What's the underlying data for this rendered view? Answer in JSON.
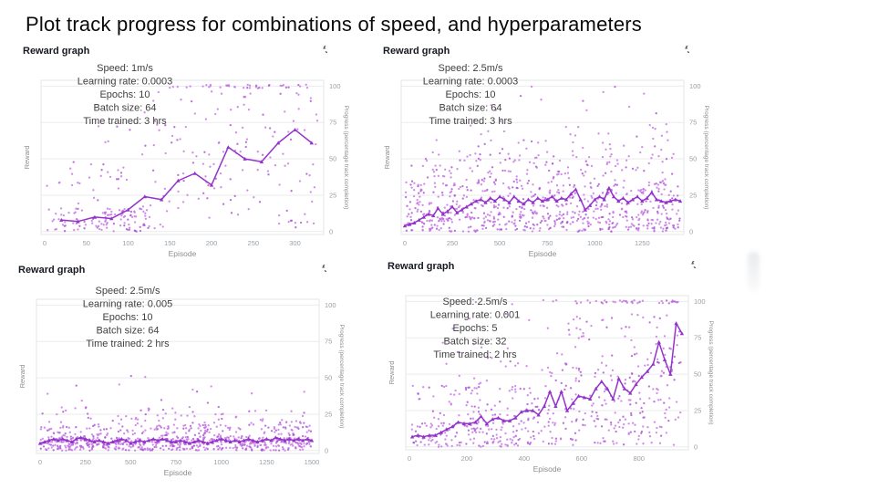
{
  "page": {
    "title": "Plot track progress for combinations of speed, and hyperparameters"
  },
  "panel": {
    "header": "Reward graph"
  },
  "colors": {
    "line": "#9433cc",
    "scatter": "#c471e3",
    "scatter_alt": "#a94fd2",
    "grid": "#ebebeb",
    "border": "#e3e6ea",
    "axis_text": "#9aa0a6",
    "axis_label": "#8d8d8d",
    "annotation_text": "#3f3f3f",
    "header_text": "#16191f",
    "icon": "#545b64"
  },
  "chart_data": {
    "type": "scatter+line",
    "shared_axes": {
      "xlabel": "Episode",
      "ylabel_left": "Reward",
      "ylabel_right": "Progress (percentage track completion)",
      "y_ticks": [
        0,
        25,
        50,
        75,
        100
      ],
      "y_range": [
        0,
        100
      ],
      "grid": "horizontal only",
      "legend": "none"
    },
    "charts": [
      {
        "title": "Reward graph",
        "annotation": [
          "Speed: 1m/s",
          "Learning rate: 0.0003",
          "Epochs: 10",
          "Batch size: 64",
          "Time trained: 3 hrs"
        ],
        "x_ticks": [
          0,
          50,
          100,
          150,
          200,
          250,
          300
        ],
        "x_max": 330,
        "seed": 7,
        "line": {
          "x": [
            20,
            40,
            60,
            80,
            100,
            120,
            140,
            160,
            180,
            200,
            220,
            240,
            260,
            280,
            300,
            320
          ],
          "y": [
            8,
            7,
            10,
            9,
            15,
            24,
            22,
            35,
            40,
            32,
            58,
            50,
            48,
            61,
            70,
            61
          ]
        },
        "scatter_clusters": [
          {
            "n": 110,
            "x": [
              2,
              130
            ],
            "y": [
              0,
              16
            ]
          },
          {
            "n": 30,
            "x": [
              2,
              130
            ],
            "y": [
              16,
              48
            ]
          },
          {
            "n": 85,
            "x": [
              130,
              328
            ],
            "y": [
              2,
              58
            ]
          },
          {
            "n": 55,
            "x": [
              130,
              328
            ],
            "y": [
              58,
              97
            ]
          },
          {
            "n": 38,
            "x": [
              140,
              328
            ],
            "y": [
              98.5,
              101
            ]
          },
          {
            "n": 10,
            "x": [
              60,
              140
            ],
            "y": [
              48,
              90
            ]
          }
        ]
      },
      {
        "title": "Reward graph",
        "annotation": [
          "Speed: 2.5m/s",
          "Learning rate: 0.0003",
          "Epochs: 10",
          "Batch size: 64",
          "Time trained: 3 hrs"
        ],
        "x_ticks": [
          0,
          250,
          500,
          750,
          1000,
          1250
        ],
        "x_max": 1450,
        "seed": 11,
        "line": {
          "x": [
            0,
            25,
            50,
            75,
            100,
            125,
            150,
            175,
            200,
            225,
            250,
            275,
            300,
            325,
            350,
            375,
            400,
            425,
            450,
            475,
            500,
            525,
            550,
            575,
            600,
            625,
            650,
            675,
            700,
            725,
            750,
            775,
            800,
            825,
            850,
            875,
            900,
            925,
            950,
            975,
            1000,
            1025,
            1050,
            1075,
            1100,
            1125,
            1150,
            1175,
            1200,
            1225,
            1250,
            1275,
            1300,
            1325,
            1350,
            1375,
            1400,
            1425,
            1450
          ],
          "y": [
            4,
            5,
            6,
            8,
            10,
            12,
            11,
            16,
            12,
            14,
            17,
            13,
            15,
            17,
            19,
            21,
            22,
            20,
            23,
            21,
            24,
            22,
            20,
            24,
            21,
            19,
            22,
            20,
            23,
            21,
            22,
            24,
            21,
            23,
            22,
            26,
            29,
            22,
            15,
            18,
            22,
            24,
            22,
            30,
            24,
            21,
            23,
            20,
            22,
            24,
            21,
            23,
            27,
            22,
            21,
            20,
            21,
            22,
            21
          ]
        },
        "scatter_clusters": [
          {
            "n": 350,
            "x": [
              2,
              1448
            ],
            "y": [
              0,
              14
            ]
          },
          {
            "n": 280,
            "x": [
              2,
              1448
            ],
            "y": [
              14,
              34
            ]
          },
          {
            "n": 140,
            "x": [
              30,
              1448
            ],
            "y": [
              34,
              54
            ]
          },
          {
            "n": 45,
            "x": [
              100,
              1448
            ],
            "y": [
              54,
              74
            ]
          },
          {
            "n": 14,
            "x": [
              250,
              1448
            ],
            "y": [
              74,
              100
            ]
          }
        ]
      },
      {
        "title": "Reward graph",
        "annotation": [
          "Speed: 2.5m/s",
          "Learning rate: 0.005",
          "Epochs: 10",
          "Batch size: 64",
          "Time trained: 2 hrs"
        ],
        "x_ticks": [
          0,
          250,
          500,
          750,
          1000,
          1250,
          1500
        ],
        "x_max": 1520,
        "seed": 13,
        "line": {
          "x": [
            0,
            25,
            50,
            75,
            100,
            125,
            150,
            175,
            200,
            225,
            250,
            275,
            300,
            325,
            350,
            375,
            400,
            425,
            450,
            475,
            500,
            525,
            550,
            575,
            600,
            625,
            650,
            675,
            700,
            725,
            750,
            775,
            800,
            825,
            850,
            875,
            900,
            925,
            950,
            975,
            1000,
            1025,
            1050,
            1075,
            1100,
            1125,
            1150,
            1175,
            1200,
            1225,
            1250,
            1275,
            1300,
            1325,
            1350,
            1375,
            1400,
            1425,
            1450,
            1475,
            1500
          ],
          "y": [
            5,
            6,
            7,
            8,
            7,
            8,
            7,
            6,
            8,
            9,
            8,
            7,
            6,
            7,
            6,
            5,
            6,
            7,
            8,
            7,
            5,
            6,
            7,
            6,
            7,
            8,
            7,
            8,
            7,
            6,
            6,
            7,
            6,
            5,
            6,
            7,
            6,
            5,
            6,
            7,
            8,
            7,
            6,
            7,
            6,
            7,
            8,
            7,
            6,
            7,
            8,
            7,
            9,
            8,
            7,
            8,
            7,
            8,
            7,
            8,
            7
          ]
        },
        "scatter_clusters": [
          {
            "n": 480,
            "x": [
              2,
              1498
            ],
            "y": [
              0,
              9
            ]
          },
          {
            "n": 190,
            "x": [
              2,
              1498
            ],
            "y": [
              9,
              18
            ]
          },
          {
            "n": 70,
            "x": [
              10,
              1498
            ],
            "y": [
              18,
              30
            ]
          },
          {
            "n": 12,
            "x": [
              30,
              1480
            ],
            "y": [
              30,
              46
            ]
          },
          {
            "n": 2,
            "x": [
              500,
              900
            ],
            "y": [
              50,
              56
            ]
          }
        ]
      },
      {
        "title": "Reward graph",
        "annotation": [
          "Speed: 2.5m/s",
          "Learning rate: 0.001",
          "Epochs: 5",
          "Batch size: 32",
          "Time trained: 2 hrs"
        ],
        "x_ticks": [
          0,
          200,
          400,
          600,
          800
        ],
        "x_max": 960,
        "seed": 17,
        "line": {
          "x": [
            10,
            30,
            50,
            70,
            90,
            110,
            130,
            150,
            170,
            190,
            210,
            230,
            250,
            270,
            290,
            310,
            330,
            350,
            370,
            390,
            410,
            430,
            450,
            470,
            490,
            510,
            530,
            550,
            570,
            590,
            610,
            630,
            650,
            670,
            690,
            710,
            730,
            750,
            770,
            790,
            810,
            830,
            850,
            870,
            890,
            910,
            930,
            950
          ],
          "y": [
            7,
            8,
            7,
            8,
            8,
            10,
            12,
            14,
            17,
            16,
            16,
            17,
            21,
            16,
            19,
            20,
            18,
            18,
            20,
            24,
            25,
            25,
            22,
            28,
            38,
            28,
            38,
            25,
            30,
            35,
            34,
            33,
            40,
            45,
            40,
            33,
            47,
            40,
            37,
            43,
            48,
            52,
            57,
            72,
            60,
            50,
            85,
            78
          ]
        },
        "scatter_clusters": [
          {
            "n": 140,
            "x": [
              2,
              400
            ],
            "y": [
              0,
              18
            ]
          },
          {
            "n": 70,
            "x": [
              10,
              400
            ],
            "y": [
              18,
              42
            ]
          },
          {
            "n": 18,
            "x": [
              80,
              400
            ],
            "y": [
              42,
              72
            ]
          },
          {
            "n": 140,
            "x": [
              400,
              948
            ],
            "y": [
              0,
              28
            ]
          },
          {
            "n": 110,
            "x": [
              400,
              948
            ],
            "y": [
              28,
              58
            ]
          },
          {
            "n": 60,
            "x": [
              480,
              948
            ],
            "y": [
              58,
              92
            ]
          },
          {
            "n": 42,
            "x": [
              450,
              948
            ],
            "y": [
              98.5,
              101
            ]
          },
          {
            "n": 6,
            "x": [
              150,
              450
            ],
            "y": [
              72,
              100
            ]
          }
        ]
      }
    ]
  }
}
